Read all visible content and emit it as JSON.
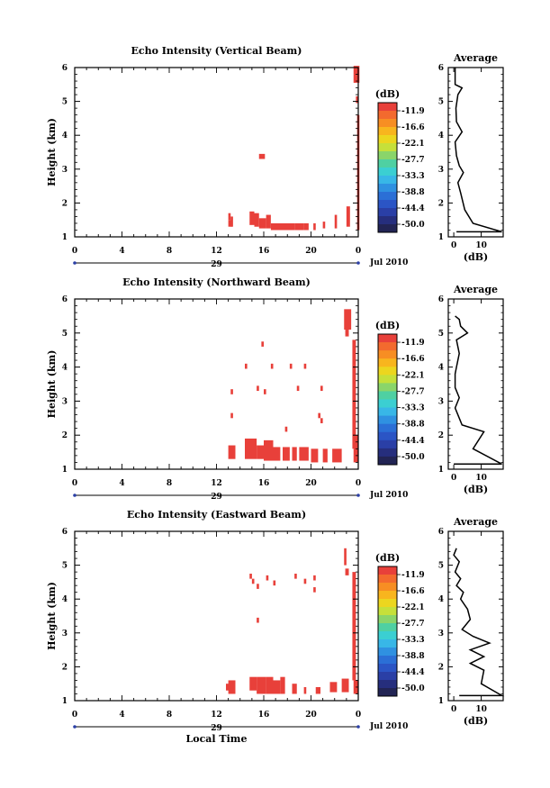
{
  "xaxis": {
    "ticks": [
      "0",
      "4",
      "8",
      "12",
      "16",
      "20",
      "0"
    ],
    "day": "29",
    "date": "Jul 2010",
    "label": "Local Time"
  },
  "yaxis": {
    "label": "Height (km)",
    "ticks": [
      "1",
      "2",
      "3",
      "4",
      "5",
      "6"
    ]
  },
  "colorbar": {
    "unit": "(dB)",
    "labels": [
      "-11.9",
      "-16.6",
      "-22.1",
      "-27.7",
      "-33.3",
      "-38.8",
      "-44.4",
      "-50.0"
    ],
    "colors": [
      "#e8403a",
      "#f36a2e",
      "#f78e23",
      "#f8b51e",
      "#ecd61f",
      "#c6e03a",
      "#8ad56a",
      "#4fd0a2",
      "#3bcfd2",
      "#38b7e7",
      "#2f91e1",
      "#2b6fd6",
      "#2b55c5",
      "#2a3fa6",
      "#262e7d",
      "#222454"
    ]
  },
  "average": {
    "title": "Average",
    "xlabel": "(dB)",
    "xticks": [
      "0",
      "10"
    ]
  },
  "chart_data": [
    {
      "type": "heatmap",
      "title": "Echo Intensity (Vertical Beam)",
      "xlim": [
        0,
        24
      ],
      "ylim": [
        1,
        6
      ],
      "ylabel": "Height (km)",
      "xlabel": "Local Time",
      "color_units": "dB",
      "cells": [
        [
          23.6,
          5.55,
          0.5,
          0.5
        ],
        [
          23.8,
          4.95,
          0.2,
          0.2
        ],
        [
          13.0,
          1.3,
          0.3,
          0.2
        ],
        [
          13.0,
          1.5,
          0.2,
          0.2
        ],
        [
          13.2,
          1.3,
          0.2,
          0.3
        ],
        [
          14.8,
          1.35,
          0.4,
          0.4
        ],
        [
          15.2,
          1.3,
          0.4,
          0.4
        ],
        [
          15.6,
          1.25,
          0.6,
          0.3
        ],
        [
          16.2,
          1.25,
          0.4,
          0.4
        ],
        [
          16.6,
          1.2,
          1.0,
          0.2
        ],
        [
          17.6,
          1.2,
          1.0,
          0.2
        ],
        [
          18.6,
          1.2,
          0.8,
          0.2
        ],
        [
          19.4,
          1.2,
          0.4,
          0.2
        ],
        [
          20.2,
          1.2,
          0.2,
          0.2
        ],
        [
          21.0,
          1.25,
          0.2,
          0.2
        ],
        [
          22.0,
          1.25,
          0.2,
          0.4
        ],
        [
          15.6,
          3.3,
          0.5,
          0.15
        ],
        [
          23.0,
          1.3,
          0.3,
          0.6
        ],
        [
          23.9,
          1.2,
          0.2,
          3.4
        ]
      ],
      "average_profile": [
        [
          1.0,
          1.15
        ],
        [
          17.5,
          1.15
        ],
        [
          7.0,
          1.4
        ],
        [
          4.0,
          1.8
        ],
        [
          2.5,
          2.3
        ],
        [
          1.5,
          2.6
        ],
        [
          3.5,
          2.9
        ],
        [
          2.0,
          3.1
        ],
        [
          1.0,
          3.4
        ],
        [
          0.5,
          3.8
        ],
        [
          3.0,
          4.1
        ],
        [
          1.0,
          4.4
        ],
        [
          0.8,
          4.8
        ],
        [
          1.5,
          5.2
        ],
        [
          3.0,
          5.4
        ],
        [
          0.5,
          5.5
        ],
        [
          0.5,
          6.0
        ]
      ],
      "average_xlim": [
        -2,
        18
      ]
    },
    {
      "type": "heatmap",
      "title": "Echo Intensity (Northward Beam)",
      "xlim": [
        0,
        24
      ],
      "ylim": [
        1,
        6
      ],
      "ylabel": "Height (km)",
      "xlabel": "Local Time",
      "color_units": "dB",
      "cells": [
        [
          22.8,
          5.1,
          0.6,
          0.6
        ],
        [
          22.9,
          4.9,
          0.3,
          0.2
        ],
        [
          15.8,
          4.6,
          0.2,
          0.15
        ],
        [
          14.4,
          3.95,
          0.2,
          0.15
        ],
        [
          16.6,
          3.95,
          0.2,
          0.15
        ],
        [
          18.2,
          3.95,
          0.2,
          0.15
        ],
        [
          19.4,
          3.95,
          0.2,
          0.15
        ],
        [
          13.2,
          3.2,
          0.2,
          0.15
        ],
        [
          15.4,
          3.3,
          0.2,
          0.15
        ],
        [
          16.0,
          3.2,
          0.2,
          0.15
        ],
        [
          18.8,
          3.3,
          0.2,
          0.15
        ],
        [
          20.8,
          3.3,
          0.2,
          0.15
        ],
        [
          13.2,
          2.5,
          0.2,
          0.15
        ],
        [
          20.6,
          2.5,
          0.2,
          0.15
        ],
        [
          20.8,
          2.35,
          0.2,
          0.15
        ],
        [
          17.8,
          2.1,
          0.2,
          0.15
        ],
        [
          13.0,
          1.3,
          0.6,
          0.4
        ],
        [
          14.4,
          1.3,
          1.0,
          0.6
        ],
        [
          15.4,
          1.3,
          0.6,
          0.4
        ],
        [
          16.0,
          1.25,
          0.8,
          0.6
        ],
        [
          16.8,
          1.25,
          0.6,
          0.4
        ],
        [
          17.6,
          1.25,
          0.6,
          0.4
        ],
        [
          18.4,
          1.25,
          0.4,
          0.4
        ],
        [
          19.0,
          1.25,
          0.8,
          0.4
        ],
        [
          20.0,
          1.2,
          0.6,
          0.4
        ],
        [
          21.0,
          1.2,
          0.4,
          0.4
        ],
        [
          21.8,
          1.2,
          0.8,
          0.4
        ],
        [
          23.6,
          1.2,
          0.4,
          0.8
        ],
        [
          23.5,
          1.6,
          0.3,
          3.2
        ]
      ],
      "average_profile": [
        [
          0.0,
          1.15
        ],
        [
          17.5,
          1.15
        ],
        [
          7.0,
          1.6
        ],
        [
          11.0,
          2.1
        ],
        [
          3.0,
          2.3
        ],
        [
          2.0,
          2.5
        ],
        [
          0.5,
          2.8
        ],
        [
          2.0,
          3.1
        ],
        [
          0.5,
          3.4
        ],
        [
          0.5,
          3.8
        ],
        [
          1.0,
          4.0
        ],
        [
          2.0,
          4.4
        ],
        [
          1.0,
          4.8
        ],
        [
          5.0,
          5.0
        ],
        [
          2.5,
          5.2
        ],
        [
          2.0,
          5.4
        ],
        [
          0.5,
          5.5
        ]
      ],
      "average_xlim": [
        -2,
        18
      ]
    },
    {
      "type": "heatmap",
      "title": "Echo Intensity (Eastward Beam)",
      "xlim": [
        0,
        24
      ],
      "ylim": [
        1,
        6
      ],
      "ylabel": "Height (km)",
      "xlabel": "Local Time",
      "color_units": "dB",
      "cells": [
        [
          22.8,
          5.0,
          0.2,
          0.5
        ],
        [
          22.9,
          4.7,
          0.3,
          0.2
        ],
        [
          14.8,
          4.6,
          0.2,
          0.15
        ],
        [
          15.0,
          4.45,
          0.2,
          0.15
        ],
        [
          15.4,
          4.3,
          0.2,
          0.15
        ],
        [
          16.2,
          4.55,
          0.2,
          0.15
        ],
        [
          16.8,
          4.4,
          0.2,
          0.15
        ],
        [
          18.6,
          4.6,
          0.2,
          0.15
        ],
        [
          19.4,
          4.45,
          0.2,
          0.15
        ],
        [
          20.2,
          4.55,
          0.2,
          0.15
        ],
        [
          20.2,
          4.2,
          0.2,
          0.15
        ],
        [
          15.4,
          3.3,
          0.2,
          0.15
        ],
        [
          12.8,
          1.3,
          0.4,
          0.2
        ],
        [
          13.0,
          1.2,
          0.6,
          0.4
        ],
        [
          14.8,
          1.3,
          0.6,
          0.4
        ],
        [
          15.4,
          1.2,
          0.8,
          0.5
        ],
        [
          16.2,
          1.2,
          0.6,
          0.5
        ],
        [
          16.8,
          1.2,
          0.6,
          0.4
        ],
        [
          17.4,
          1.2,
          0.4,
          0.5
        ],
        [
          18.4,
          1.2,
          0.4,
          0.3
        ],
        [
          19.4,
          1.2,
          0.2,
          0.2
        ],
        [
          20.4,
          1.2,
          0.4,
          0.2
        ],
        [
          21.6,
          1.25,
          0.6,
          0.3
        ],
        [
          22.6,
          1.25,
          0.6,
          0.4
        ],
        [
          23.6,
          1.2,
          0.4,
          0.4
        ],
        [
          23.5,
          1.6,
          0.3,
          3.2
        ]
      ],
      "average_profile": [
        [
          2.0,
          1.15
        ],
        [
          17.5,
          1.15
        ],
        [
          10.0,
          1.5
        ],
        [
          11.0,
          1.9
        ],
        [
          6.0,
          2.1
        ],
        [
          11.0,
          2.3
        ],
        [
          6.0,
          2.5
        ],
        [
          13.0,
          2.7
        ],
        [
          7.0,
          2.9
        ],
        [
          3.0,
          3.1
        ],
        [
          6.0,
          3.4
        ],
        [
          5.0,
          3.7
        ],
        [
          2.5,
          4.0
        ],
        [
          3.5,
          4.2
        ],
        [
          1.0,
          4.4
        ],
        [
          2.5,
          4.6
        ],
        [
          0.5,
          4.8
        ],
        [
          2.0,
          5.1
        ],
        [
          0.0,
          5.3
        ],
        [
          1.0,
          5.5
        ]
      ],
      "average_xlim": [
        -2,
        18
      ]
    }
  ]
}
